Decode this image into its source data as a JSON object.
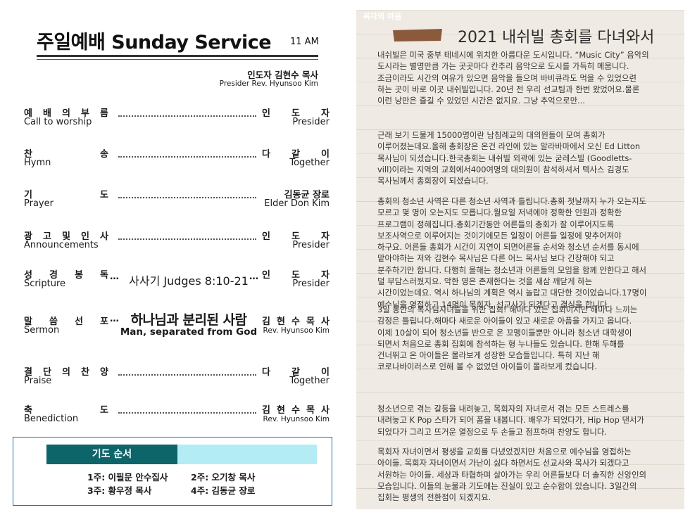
{
  "left": {
    "title": "주일예배 Sunday Service",
    "time": "11 AM",
    "presider_ko": "인도자  김현수 목사",
    "presider_en": "Presider Rev. Hyunsoo Kim",
    "rows": [
      {
        "ko": [
          "예",
          "배",
          "의",
          "부",
          "름"
        ],
        "en": "Call to worship",
        "right_ko": [
          "인",
          "도",
          "자"
        ],
        "right_en": "Presider"
      },
      {
        "ko": [
          "찬",
          "송"
        ],
        "en": "Hymn",
        "right_ko": [
          "다",
          "같",
          "이"
        ],
        "right_en": "Together"
      },
      {
        "ko": [
          "기",
          "도"
        ],
        "en": "Prayer",
        "right_ko_text": "김동균 장로",
        "right_en": "Elder Don Kim"
      },
      {
        "ko": [
          "광",
          "고",
          "및",
          "인",
          "사"
        ],
        "en": "Announcements",
        "right_ko": [
          "인",
          "도",
          "자"
        ],
        "right_en": "Presider"
      },
      {
        "ko": [
          "성",
          "경",
          "봉",
          "독"
        ],
        "en": "Scripture",
        "center": "사사기 Judges 8:10-21",
        "right_ko": [
          "인",
          "도",
          "자"
        ],
        "right_en": "Presider"
      },
      {
        "ko": [
          "말",
          "씀",
          "선",
          "포"
        ],
        "en": "Sermon",
        "center_ko": "하나님과 분리된 사람",
        "center_en": "Man, separated from God",
        "right_ko": [
          "김",
          "현",
          "수",
          "목",
          "사"
        ],
        "right_en": "Rev. Hyunsoo Kim"
      },
      {
        "ko": [
          "결",
          "단",
          "의",
          "찬",
          "양"
        ],
        "en": "Praise",
        "right_ko": [
          "다",
          "같",
          "이"
        ],
        "right_en": "Together"
      },
      {
        "ko": [
          "축",
          "도"
        ],
        "en": "Benediction",
        "right_ko": [
          "김",
          "현",
          "수",
          "목",
          "사"
        ],
        "right_en": "Rev. Hyunsoo Kim"
      }
    ],
    "ellipsis": "…",
    "prayer": {
      "heading": "기도 순서",
      "items": [
        "1주: 이필문 안수집사",
        "2주: 오기창 목사",
        "3주: 황우정 목사",
        "4주: 김동균 장로"
      ]
    }
  },
  "right": {
    "brand": "목자의 마음",
    "title": "2021 내쉬빌 총회를 다녀와서",
    "paragraphs": [
      "내쉬빌은 미국 중부 테네시에 위치한 아름다운 도시입니다. “Music City” 음악의\n도시라는 별명만큼 가는 곳곳마다 칸추리 음악으로 도시를 가득히 메웁니다.\n조금이라도 시간의 여유가 있으면 음악을 들으며 바비큐라도 먹을 수 있었으련\n하는 곳이 바로 이곳 내쉬빌입니다. 20년 전 우리 선교팀과 한번 왔었어요.물론\n이런 낭만은 즐길 수 있었던 시간은 없지요. 그냥 추억으로만...",
      "근래 보기 드물게 15000명이란 남침례교의 대의원들이 모여 총회가\n이루어졌는데요.올해 총회장은 온건 라인에 있는 알라바마에서 오신 Ed Litton\n목사님이 되셨습니다.한국총회는 내쉬빌 외곽에 있는 굳레스빌 (Goodletts-\nvill)이라는 지역의 교회에서400여명의 대의원이 참석하셔서 텍사스 김경도\n목사님께서 총회장이 되셨습니다.",
      "총회의 청소년 사역은 다른 청소년 사역과 틀립니다.총회 첫날까지 누가 오는지도\n모르고 몇 명이 오는지도 모릅니다.월요일 저녁에야 정확한 인원과 정확한\n프로그램이 정해집니다.총회기간동안 어른들의 총회가 잘 이루어지도록\n보조사역으로 이루어지는 것이기에모든 일정이 어른들 일정에 맞추어져야\n하구요. 어른들 총회가 시간이 지연이 되면어른들 순서와 청소년 순서를 동시에\n맡아야하는 저와 김현수 목사님은 다른 어느 목사님 보다 긴장해야 되고\n분주하기만 합니다. 다행히 올해는 청소년과 어른들의 모임을 함께 안한다고 해서\n덜 부담스러웠지요. 악한 영은 존재한다는 것을 새삼 깨닫게 하는\n시간이었는데요. 역시 하나님의 계획은 역시 놀랍고 대단한 것이었습니다.17명이\n예수님을 영접하고 14명이 목회자, 선교사가 되겠다고 결심을 합니다.",
      "3일 동안의 목사님자녀들을 위한 집회! 해마다 있는 집회이지만 해마다 느끼는\n감정은 틀립니다.해마다 새로운 아이들이 있고 새로운 아픔을 가지고 옵니다.\n이제 10살이 되어 청소년들 반으로 온 꼬맹이들뿐만 아니라 청소년 대학생이\n되면서 처음으로 총회 집회에 참석하는 형 누나들도 있습니다. 한해 두해를\n건너뛰고 온 아이들은 몰라보게 성장한 모습들입니다. 특히 지난 해\n코로나바이러스로 인해 볼 수 없었던 아이들이 몰라보게 컸습니다.",
      "청소년으로 겪는 갈등을 내려놓고, 목회자의 자녀로서 겪는 모든 스트레스를\n내려놓고 K Pop 스타가 되어 폼을 내봅니다. 배우가 되었다가, Hip Hop 댄서가\n되었다가 그리고 뜨거운 열정으로 두 손들고 점프하며 찬양도 합니다.",
      "목회자 자녀이면서 평생을 교회를 다녔었겠지만 처음으로 예수님을 영접하는\n아이들. 목회자 자녀이면서 가난이 싫다 하면서도 선교사와 목사가 되겠다고\n서원하는 아이들. 세상과 타협하며 살아가는 우리 어른들보다 더 솔직한 신앙인의\n모습입니다. 이들의 눈물과 기도에는 진실이 있고 순수함이 있습니다. 3일간의\n집회는 평생의 전환점이 되겠지요."
    ]
  },
  "colors": {
    "prayer_heading_bg": "#0d6469",
    "prayer_bar_light": "#b3ecf5",
    "prayer_box_border": "#1a6fb0",
    "brand_bg": "#8a5a3b",
    "wood_bg": "#efebe4"
  }
}
